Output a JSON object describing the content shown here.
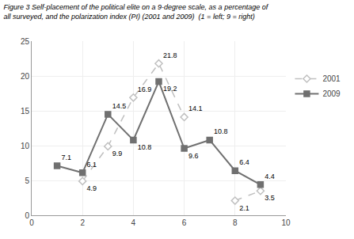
{
  "chart_data": {
    "type": "line",
    "title": "Figure 3 Self-placement of the political elite on a 9-degree scale, as a percentage of",
    "subtitle": "all surveyed, and the polarization index (PI) (2001 and 2009)  (1 = left; 9 = right)",
    "x": [
      1,
      2,
      3,
      4,
      5,
      6,
      7,
      8,
      9
    ],
    "series": [
      {
        "name": "2001",
        "color": "#c0c0c0",
        "line_style": "dashed",
        "marker": "diamond",
        "values": [
          null,
          4.9,
          9.9,
          16.9,
          21.8,
          14.1,
          null,
          2.1,
          3.5
        ]
      },
      {
        "name": "2009",
        "color": "#707070",
        "line_style": "solid",
        "marker": "square",
        "values": [
          7.1,
          6.1,
          14.5,
          10.8,
          19.2,
          9.6,
          10.8,
          6.4,
          4.4
        ]
      }
    ],
    "xlim": [
      0,
      10
    ],
    "xticks": [
      0,
      2,
      4,
      6,
      8,
      10
    ],
    "ylim": [
      0,
      25
    ],
    "yticks": [
      0,
      5,
      10,
      15,
      20,
      25
    ],
    "grid": true,
    "legend": "right",
    "data_labels": true
  }
}
